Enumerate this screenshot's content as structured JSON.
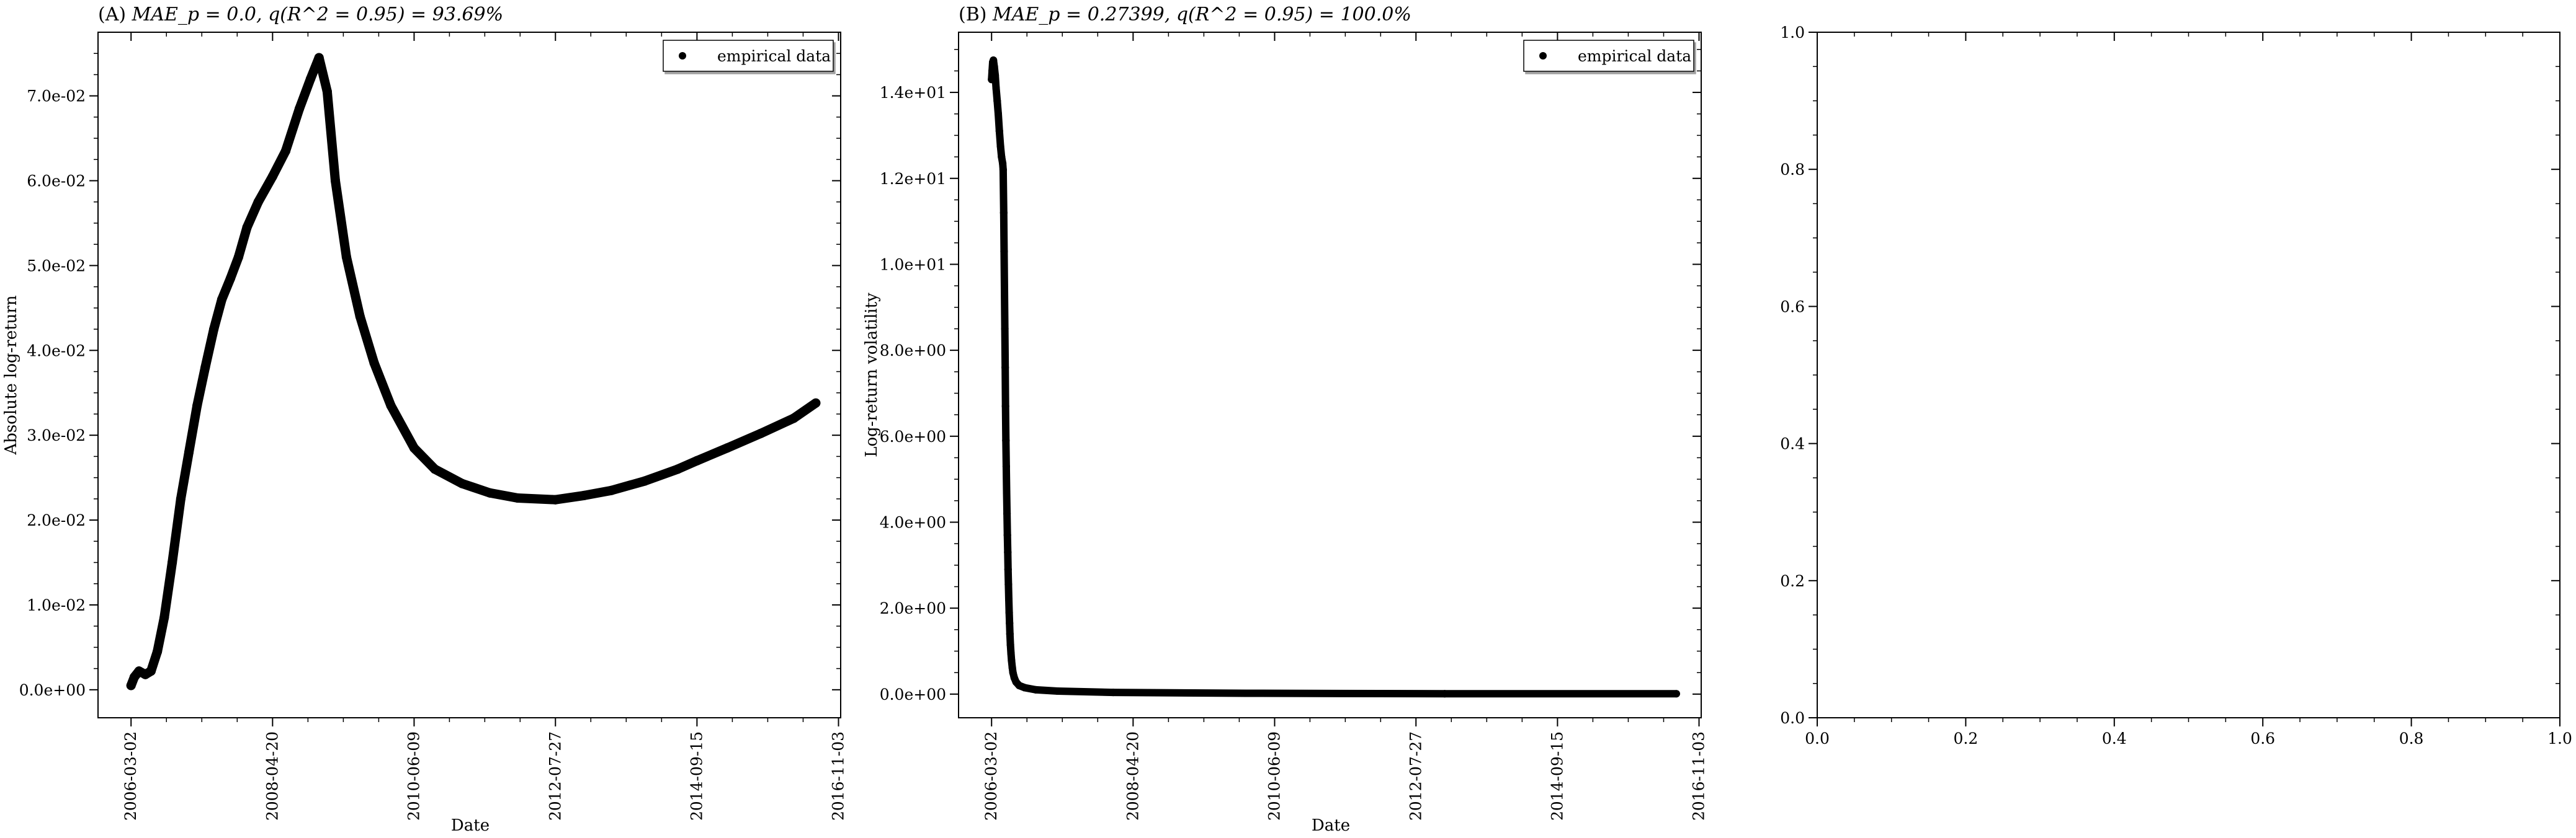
{
  "chart_data": [
    {
      "type": "scatter",
      "title_prefix": "(A) ",
      "title_math": "MAE_p = 0.0, q(R^2 = 0.95) = 93.69%",
      "xlabel": "Date",
      "ylabel": "Absolute log-return",
      "x_ticks": [
        "2006-03-02",
        "2008-04-20",
        "2010-06-09",
        "2012-07-27",
        "2014-09-15",
        "2016-11-03"
      ],
      "xlim": [
        "2005-09-01",
        "2016-11-15"
      ],
      "y_ticks": [
        "0.0e+00",
        "1.0e-02",
        "2.0e-02",
        "3.0e-02",
        "4.0e-02",
        "5.0e-02",
        "6.0e-02",
        "7.0e-02"
      ],
      "ylim": [
        -0.0033,
        0.0775
      ],
      "legend": {
        "label": "empirical data",
        "placement": "top-right"
      },
      "series": [
        {
          "name": "empirical data",
          "points": [
            [
              "2006-03-02",
              0.0005
            ],
            [
              "2006-03-20",
              0.0015
            ],
            [
              "2006-04-15",
              0.0022
            ],
            [
              "2006-05-20",
              0.0018
            ],
            [
              "2006-06-20",
              0.0022
            ],
            [
              "2006-07-25",
              0.0045
            ],
            [
              "2006-09-01",
              0.0085
            ],
            [
              "2006-10-15",
              0.015
            ],
            [
              "2006-12-01",
              0.0225
            ],
            [
              "2007-01-15",
              0.028
            ],
            [
              "2007-03-01",
              0.0335
            ],
            [
              "2007-04-15",
              0.038
            ],
            [
              "2007-06-01",
              0.0425
            ],
            [
              "2007-07-15",
              0.046
            ],
            [
              "2007-09-01",
              0.0485
            ],
            [
              "2007-10-15",
              0.051
            ],
            [
              "2007-12-01",
              0.0545
            ],
            [
              "2008-02-01",
              0.0575
            ],
            [
              "2008-04-20",
              0.0605
            ],
            [
              "2008-07-01",
              0.0635
            ],
            [
              "2008-09-15",
              0.0685
            ],
            [
              "2008-11-15",
              0.072
            ],
            [
              "2009-01-01",
              0.0745
            ],
            [
              "2009-02-15",
              0.0705
            ],
            [
              "2009-04-01",
              0.06
            ],
            [
              "2009-06-01",
              0.051
            ],
            [
              "2009-08-15",
              0.044
            ],
            [
              "2009-11-01",
              0.0385
            ],
            [
              "2010-02-01",
              0.0335
            ],
            [
              "2010-06-09",
              0.0285
            ],
            [
              "2010-10-01",
              0.026
            ],
            [
              "2011-03-01",
              0.0243
            ],
            [
              "2011-08-01",
              0.0232
            ],
            [
              "2012-01-01",
              0.0226
            ],
            [
              "2012-07-27",
              0.0224
            ],
            [
              "2013-01-01",
              0.0229
            ],
            [
              "2013-06-01",
              0.0235
            ],
            [
              "2013-12-01",
              0.0246
            ],
            [
              "2014-06-01",
              0.026
            ],
            [
              "2014-09-15",
              0.027
            ],
            [
              "2015-03-01",
              0.0285
            ],
            [
              "2015-09-01",
              0.0302
            ],
            [
              "2016-03-01",
              0.032
            ],
            [
              "2016-07-01",
              0.0338
            ]
          ]
        }
      ]
    },
    {
      "type": "scatter",
      "title_prefix": "(B) ",
      "title_math": "MAE_p = 0.27399, q(R^2 = 0.95) = 100.0%",
      "xlabel": "Date",
      "ylabel": "Log-return volatility",
      "x_ticks": [
        "2006-03-02",
        "2008-04-20",
        "2010-06-09",
        "2012-07-27",
        "2014-09-15",
        "2016-11-03"
      ],
      "xlim": [
        "2005-09-01",
        "2016-11-15"
      ],
      "y_ticks": [
        "0.0e+00",
        "2.0e+00",
        "4.0e+00",
        "6.0e+00",
        "8.0e+00",
        "1.0e+01",
        "1.2e+01",
        "1.4e+01"
      ],
      "ylim": [
        -0.55,
        15.4
      ],
      "legend": {
        "label": "empirical data",
        "placement": "top-right"
      },
      "series": [
        {
          "name": "empirical data",
          "points": [
            [
              "2006-03-02",
              14.3
            ],
            [
              "2006-03-05",
              14.5
            ],
            [
              "2006-03-08",
              14.7
            ],
            [
              "2006-03-12",
              14.75
            ],
            [
              "2006-03-17",
              14.6
            ],
            [
              "2006-03-22",
              14.4
            ],
            [
              "2006-03-27",
              14.1
            ],
            [
              "2006-04-02",
              13.8
            ],
            [
              "2006-04-08",
              13.5
            ],
            [
              "2006-04-14",
              13.1
            ],
            [
              "2006-04-20",
              12.75
            ],
            [
              "2006-04-26",
              12.5
            ],
            [
              "2006-05-02",
              12.35
            ],
            [
              "2006-05-05",
              12.2
            ],
            [
              "2006-05-08",
              11.2
            ],
            [
              "2006-05-10",
              10.3
            ],
            [
              "2006-05-12",
              9.4
            ],
            [
              "2006-05-14",
              8.5
            ],
            [
              "2006-05-16",
              7.6
            ],
            [
              "2006-05-18",
              6.7
            ],
            [
              "2006-05-20",
              5.9
            ],
            [
              "2006-05-22",
              5.3
            ],
            [
              "2006-05-24",
              4.7
            ],
            [
              "2006-05-26",
              4.2
            ],
            [
              "2006-05-28",
              3.7
            ],
            [
              "2006-05-30",
              3.3
            ],
            [
              "2006-06-01",
              2.9
            ],
            [
              "2006-06-03",
              2.55
            ],
            [
              "2006-06-05",
              2.2
            ],
            [
              "2006-06-07",
              1.9
            ],
            [
              "2006-06-09",
              1.65
            ],
            [
              "2006-06-11",
              1.4
            ],
            [
              "2006-06-14",
              1.15
            ],
            [
              "2006-06-17",
              0.95
            ],
            [
              "2006-06-20",
              0.78
            ],
            [
              "2006-06-24",
              0.62
            ],
            [
              "2006-06-28",
              0.5
            ],
            [
              "2006-07-05",
              0.38
            ],
            [
              "2006-07-15",
              0.28
            ],
            [
              "2006-08-01",
              0.2
            ],
            [
              "2006-09-01",
              0.15
            ],
            [
              "2006-11-01",
              0.1
            ],
            [
              "2007-03-01",
              0.07
            ],
            [
              "2008-01-01",
              0.04
            ],
            [
              "2010-01-01",
              0.02
            ],
            [
              "2013-01-01",
              0.01
            ],
            [
              "2016-07-01",
              0.01
            ]
          ]
        }
      ]
    },
    {
      "type": "scatter",
      "title_prefix": "",
      "title_math": "",
      "xlabel": "",
      "ylabel": "",
      "x_ticks": [
        "0.0",
        "0.2",
        "0.4",
        "0.6",
        "0.8",
        "1.0"
      ],
      "xlim": [
        0,
        1
      ],
      "y_ticks": [
        "0.0",
        "0.2",
        "0.4",
        "0.6",
        "0.8",
        "1.0"
      ],
      "ylim": [
        0,
        1
      ],
      "series": []
    }
  ]
}
